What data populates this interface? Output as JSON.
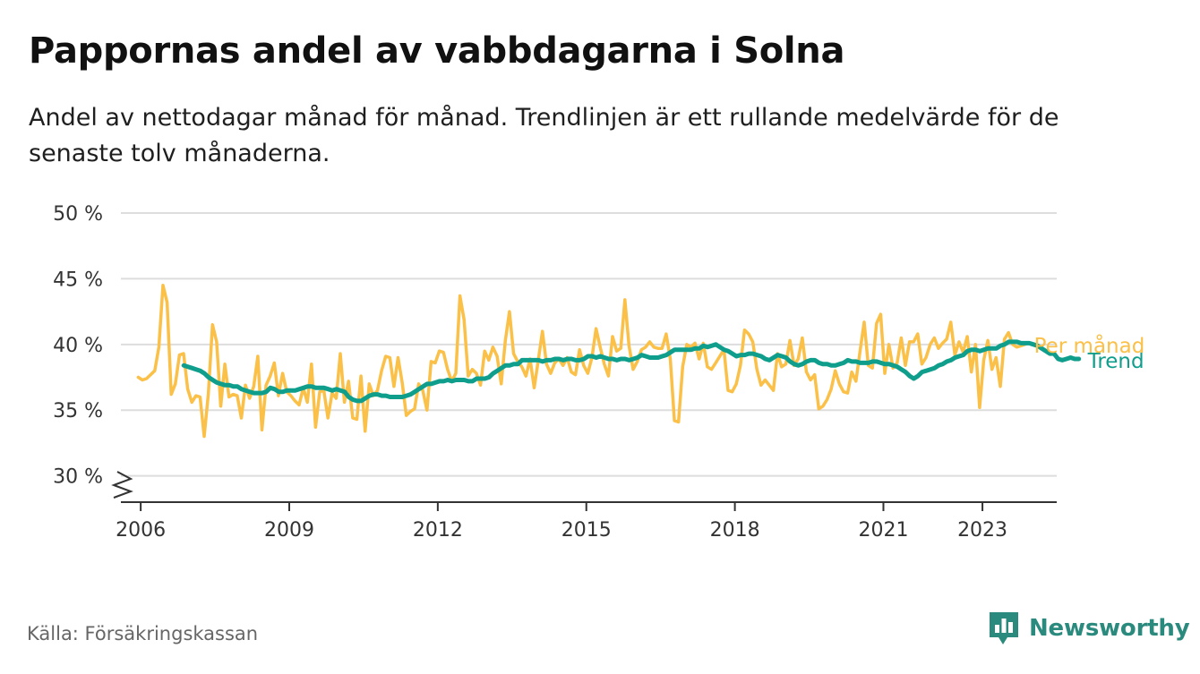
{
  "header": {
    "title": "Pappornas andel av vabbdagarna i Solna",
    "subtitle": "Andel av nettodagar månad för månad. Trendlinjen är ett rullande medelvärde för de senaste tolv månaderna."
  },
  "footer": {
    "source": "Källa: Försäkringskassan",
    "brand": "Newsworthy"
  },
  "colors": {
    "monthly": "#fbc048",
    "trend": "#0f9e8c",
    "grid": "#dddddd",
    "axis": "#333333",
    "brand": "#2b8a7e"
  },
  "chart_data": {
    "type": "line",
    "xlim": [
      2005.6,
      2024.5
    ],
    "ylim": [
      28,
      50
    ],
    "y_break": true,
    "grid": true,
    "yticks": [
      {
        "value": 30,
        "label": "30 %"
      },
      {
        "value": 35,
        "label": "35 %"
      },
      {
        "value": 40,
        "label": "40 %"
      },
      {
        "value": 45,
        "label": "45 %"
      },
      {
        "value": 50,
        "label": "50 %"
      }
    ],
    "xticks": [
      {
        "value": 2006,
        "label": "2006"
      },
      {
        "value": 2009,
        "label": "2009"
      },
      {
        "value": 2012,
        "label": "2012"
      },
      {
        "value": 2015,
        "label": "2015"
      },
      {
        "value": 2018,
        "label": "2018"
      },
      {
        "value": 2021,
        "label": "2021"
      },
      {
        "value": 2023,
        "label": "2023"
      }
    ],
    "series": [
      {
        "name": "Per månad",
        "key": "monthly",
        "x_start": 2005.95,
        "x_step": 0.0833,
        "values": [
          37.5,
          37.3,
          37.4,
          37.7,
          38.0,
          39.8,
          44.5,
          43.2,
          36.2,
          37.0,
          39.2,
          39.3,
          36.6,
          35.6,
          36.1,
          36.0,
          33.0,
          36.2,
          41.5,
          40.2,
          35.3,
          38.5,
          36.0,
          36.2,
          36.1,
          34.4,
          36.9,
          35.9,
          36.8,
          39.1,
          33.5,
          36.9,
          37.6,
          38.6,
          36.1,
          37.8,
          36.4,
          36.1,
          35.7,
          35.4,
          36.7,
          35.6,
          38.5,
          33.7,
          36.4,
          36.5,
          34.4,
          36.3,
          35.9,
          39.3,
          35.6,
          37.2,
          34.4,
          34.3,
          37.6,
          33.4,
          37.0,
          36.1,
          36.5,
          38.0,
          39.1,
          39.0,
          36.8,
          39.0,
          37.1,
          34.6,
          34.9,
          35.1,
          37.0,
          36.5,
          35.0,
          38.7,
          38.6,
          39.5,
          39.4,
          38.1,
          37.2,
          37.8,
          43.7,
          41.9,
          37.6,
          38.1,
          37.8,
          36.9,
          39.5,
          38.8,
          39.8,
          39.1,
          37.0,
          40.3,
          42.5,
          39.3,
          38.7,
          38.3,
          37.6,
          38.9,
          36.7,
          38.8,
          41.0,
          38.5,
          37.8,
          38.6,
          38.9,
          38.4,
          39.0,
          37.9,
          37.7,
          39.6,
          38.4,
          37.8,
          39.0,
          41.2,
          39.8,
          38.5,
          37.6,
          40.6,
          39.5,
          39.7,
          43.4,
          39.9,
          38.1,
          38.7,
          39.6,
          39.8,
          40.2,
          39.8,
          39.7,
          39.7,
          40.8,
          38.9,
          34.2,
          34.1,
          38.3,
          40.0,
          39.8,
          40.1,
          38.9,
          40.1,
          38.3,
          38.1,
          38.6,
          39.1,
          39.6,
          36.5,
          36.4,
          37.0,
          38.4,
          41.1,
          40.8,
          40.2,
          38.1,
          36.9,
          37.3,
          36.9,
          36.5,
          39.3,
          38.3,
          38.5,
          40.3,
          38.4,
          38.9,
          40.5,
          37.9,
          37.3,
          37.7,
          35.1,
          35.3,
          35.8,
          36.6,
          38.0,
          37.0,
          36.4,
          36.3,
          37.9,
          37.2,
          39.5,
          41.7,
          38.4,
          38.2,
          41.6,
          42.3,
          37.8,
          40.0,
          38.2,
          38.6,
          40.5,
          38.4,
          40.2,
          40.2,
          40.8,
          38.5,
          39.0,
          40.0,
          40.5,
          39.7,
          40.1,
          40.4,
          41.7,
          39.2,
          40.2,
          39.4,
          40.6,
          37.9,
          40.0,
          35.2,
          38.8,
          40.3,
          38.1,
          39.0,
          36.8,
          40.4,
          40.9,
          40.0,
          39.8,
          39.9,
          40.0
        ]
      },
      {
        "name": "Trend",
        "key": "trend",
        "x_start": 2006.87,
        "x_step": 0.0833,
        "values": [
          38.4,
          38.3,
          38.2,
          38.1,
          38.0,
          37.8,
          37.5,
          37.3,
          37.1,
          37.0,
          36.9,
          36.9,
          36.8,
          36.8,
          36.6,
          36.5,
          36.4,
          36.3,
          36.3,
          36.3,
          36.4,
          36.7,
          36.6,
          36.4,
          36.4,
          36.5,
          36.5,
          36.5,
          36.6,
          36.7,
          36.8,
          36.8,
          36.7,
          36.7,
          36.7,
          36.6,
          36.5,
          36.6,
          36.5,
          36.4,
          36.0,
          35.8,
          35.7,
          35.7,
          35.9,
          36.1,
          36.2,
          36.2,
          36.1,
          36.1,
          36.0,
          36.0,
          36.0,
          36.0,
          36.1,
          36.2,
          36.4,
          36.6,
          36.8,
          37.0,
          37.0,
          37.1,
          37.2,
          37.2,
          37.3,
          37.2,
          37.3,
          37.3,
          37.3,
          37.2,
          37.2,
          37.4,
          37.4,
          37.4,
          37.5,
          37.8,
          38.0,
          38.2,
          38.4,
          38.4,
          38.5,
          38.5,
          38.8,
          38.8,
          38.8,
          38.8,
          38.8,
          38.7,
          38.8,
          38.8,
          38.9,
          38.9,
          38.8,
          38.9,
          38.9,
          38.8,
          38.8,
          38.9,
          39.1,
          39.1,
          39.0,
          39.1,
          39.0,
          38.9,
          38.9,
          38.8,
          38.9,
          38.9,
          38.8,
          38.9,
          39.0,
          39.2,
          39.1,
          39.0,
          39.0,
          39.0,
          39.1,
          39.2,
          39.4,
          39.6,
          39.6,
          39.6,
          39.6,
          39.6,
          39.7,
          39.7,
          39.9,
          39.8,
          39.9,
          40.0,
          39.8,
          39.6,
          39.5,
          39.3,
          39.1,
          39.2,
          39.2,
          39.3,
          39.3,
          39.2,
          39.1,
          38.9,
          38.8,
          39.0,
          39.2,
          39.1,
          39.0,
          38.7,
          38.5,
          38.4,
          38.5,
          38.7,
          38.8,
          38.8,
          38.6,
          38.5,
          38.5,
          38.4,
          38.4,
          38.5,
          38.6,
          38.8,
          38.7,
          38.7,
          38.6,
          38.6,
          38.6,
          38.7,
          38.7,
          38.6,
          38.5,
          38.5,
          38.4,
          38.3,
          38.1,
          37.9,
          37.6,
          37.4,
          37.6,
          37.9,
          38.0,
          38.1,
          38.2,
          38.4,
          38.5,
          38.7,
          38.8,
          39.0,
          39.1,
          39.2,
          39.5,
          39.6,
          39.6,
          39.5,
          39.6,
          39.7,
          39.7,
          39.7,
          39.9,
          40.0,
          40.2,
          40.2,
          40.2,
          40.1,
          40.1,
          40.1,
          40.0,
          39.9,
          39.7,
          39.5,
          39.3,
          39.3,
          38.9,
          38.8,
          38.9,
          39.0,
          38.9,
          38.9
        ]
      }
    ]
  }
}
